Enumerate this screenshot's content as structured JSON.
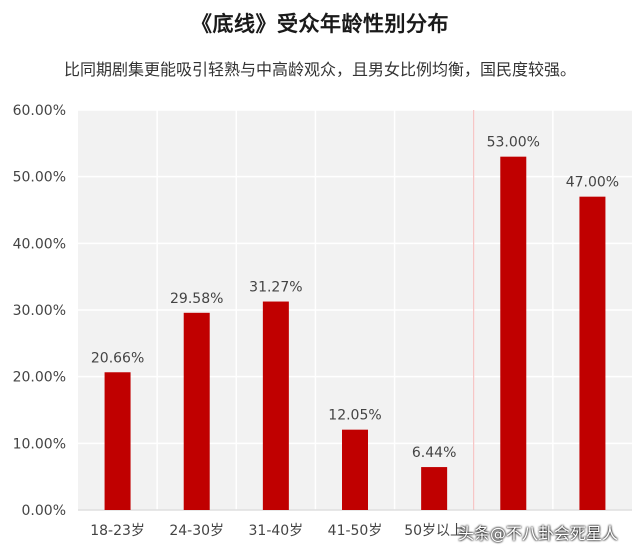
{
  "header": {
    "title": "《底线》受众年龄性别分布",
    "subtitle": "比同期剧集更能吸引轻熟与中高龄观众，且男女比例均衡，国民度较强。"
  },
  "watermark": "头条@不八卦会死星人",
  "colors": {
    "bar": "#c00000",
    "plot_bg": "#f2f2f2",
    "grid": "#ffffff",
    "accent_line": "#f4b6b6"
  },
  "chart_data": {
    "type": "bar",
    "categories": [
      "18-23岁",
      "24-30岁",
      "31-40岁",
      "41-50岁",
      "50岁以上",
      "",
      ""
    ],
    "values": [
      20.66,
      29.58,
      31.27,
      12.05,
      6.44,
      53.0,
      47.0
    ],
    "value_labels": [
      "20.66%",
      "29.58%",
      "31.27%",
      "12.05%",
      "6.44%",
      "53.00%",
      "47.00%"
    ],
    "yticks": [
      "0.00%",
      "10.00%",
      "20.00%",
      "30.00%",
      "40.00%",
      "50.00%",
      "60.00%"
    ],
    "ylim": [
      0,
      60
    ],
    "grid": true,
    "title": "",
    "xlabel": "",
    "ylabel": ""
  }
}
